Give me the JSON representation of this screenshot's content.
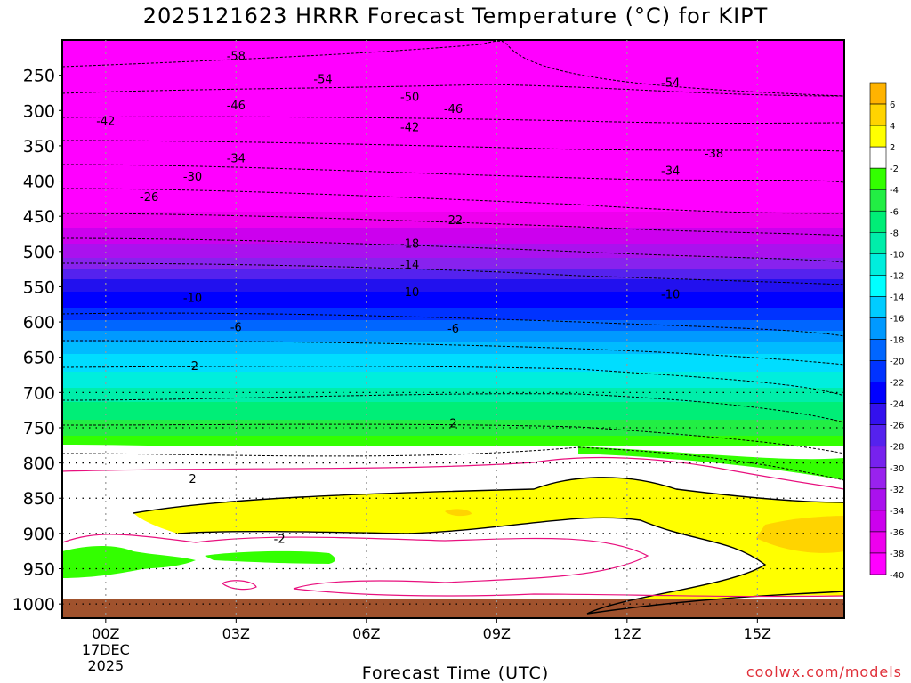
{
  "title": "2025121623 HRRR Forecast Temperature (°C) for KIPT",
  "xlabel": "Forecast Time (UTC)",
  "credit": "coolwx.com/models",
  "chart_data": {
    "type": "contour",
    "y_axis_ticks": [
      "250",
      "300",
      "350",
      "400",
      "450",
      "500",
      "550",
      "600",
      "650",
      "700",
      "750",
      "800",
      "850",
      "900",
      "950",
      "1000"
    ],
    "x_axis_ticks": [
      {
        "label": "00Z",
        "hour": 0,
        "date": "17DEC",
        "year": "2025"
      },
      {
        "label": "03Z",
        "hour": 3
      },
      {
        "label": "06Z",
        "hour": 6
      },
      {
        "label": "09Z",
        "hour": 9
      },
      {
        "label": "12Z",
        "hour": 12
      },
      {
        "label": "15Z",
        "hour": 15
      }
    ],
    "xlim": [
      -1,
      17
    ],
    "ylim": [
      200,
      1020
    ],
    "colorbar_labels": [
      "6",
      "4",
      "2",
      "-2",
      "-4",
      "-6",
      "-8",
      "-10",
      "-12",
      "-14",
      "-16",
      "-18",
      "-20",
      "-22",
      "-24",
      "-26",
      "-28",
      "-30",
      "-32",
      "-34",
      "-36",
      "-38",
      "-40"
    ],
    "colorbar_colors": [
      "#ffb300",
      "#ffd400",
      "#ffff00",
      "#ffffff",
      "#33ff00",
      "#22ee44",
      "#00ee77",
      "#00eeaa",
      "#00eedd",
      "#00ffff",
      "#00ccff",
      "#0099ff",
      "#0066ff",
      "#0033ff",
      "#0000ff",
      "#3311ee",
      "#5522ee",
      "#7722ee",
      "#9922ee",
      "#aa11ee",
      "#cc00ee",
      "#ee00ee",
      "#ff00ff"
    ],
    "contour_labels": [
      {
        "text": "-58",
        "hour": 3,
        "p": 222
      },
      {
        "text": "-54",
        "hour": 5,
        "p": 255
      },
      {
        "text": "-54",
        "hour": 13,
        "p": 260
      },
      {
        "text": "-50",
        "hour": 7,
        "p": 280
      },
      {
        "text": "-46",
        "hour": 3,
        "p": 292
      },
      {
        "text": "-46",
        "hour": 8,
        "p": 297
      },
      {
        "text": "-42",
        "hour": 0,
        "p": 314
      },
      {
        "text": "-42",
        "hour": 7,
        "p": 323
      },
      {
        "text": "-38",
        "hour": 14,
        "p": 360
      },
      {
        "text": "-34",
        "hour": 3,
        "p": 367
      },
      {
        "text": "-34",
        "hour": 13,
        "p": 385
      },
      {
        "text": "-30",
        "hour": 2,
        "p": 393
      },
      {
        "text": "-26",
        "hour": 1,
        "p": 422
      },
      {
        "text": "-22",
        "hour": 8,
        "p": 455
      },
      {
        "text": "-18",
        "hour": 7,
        "p": 488
      },
      {
        "text": "-14",
        "hour": 7,
        "p": 518
      },
      {
        "text": "-10",
        "hour": 2,
        "p": 565
      },
      {
        "text": "-10",
        "hour": 7,
        "p": 557
      },
      {
        "text": "-10",
        "hour": 13,
        "p": 560
      },
      {
        "text": "-6",
        "hour": 3,
        "p": 607
      },
      {
        "text": "-6",
        "hour": 8,
        "p": 609
      },
      {
        "text": "-2",
        "hour": 2,
        "p": 662
      },
      {
        "text": "2",
        "hour": 8,
        "p": 743
      },
      {
        "text": "2",
        "hour": 2,
        "p": 822
      },
      {
        "text": "-2",
        "hour": 4,
        "p": 907
      }
    ]
  }
}
